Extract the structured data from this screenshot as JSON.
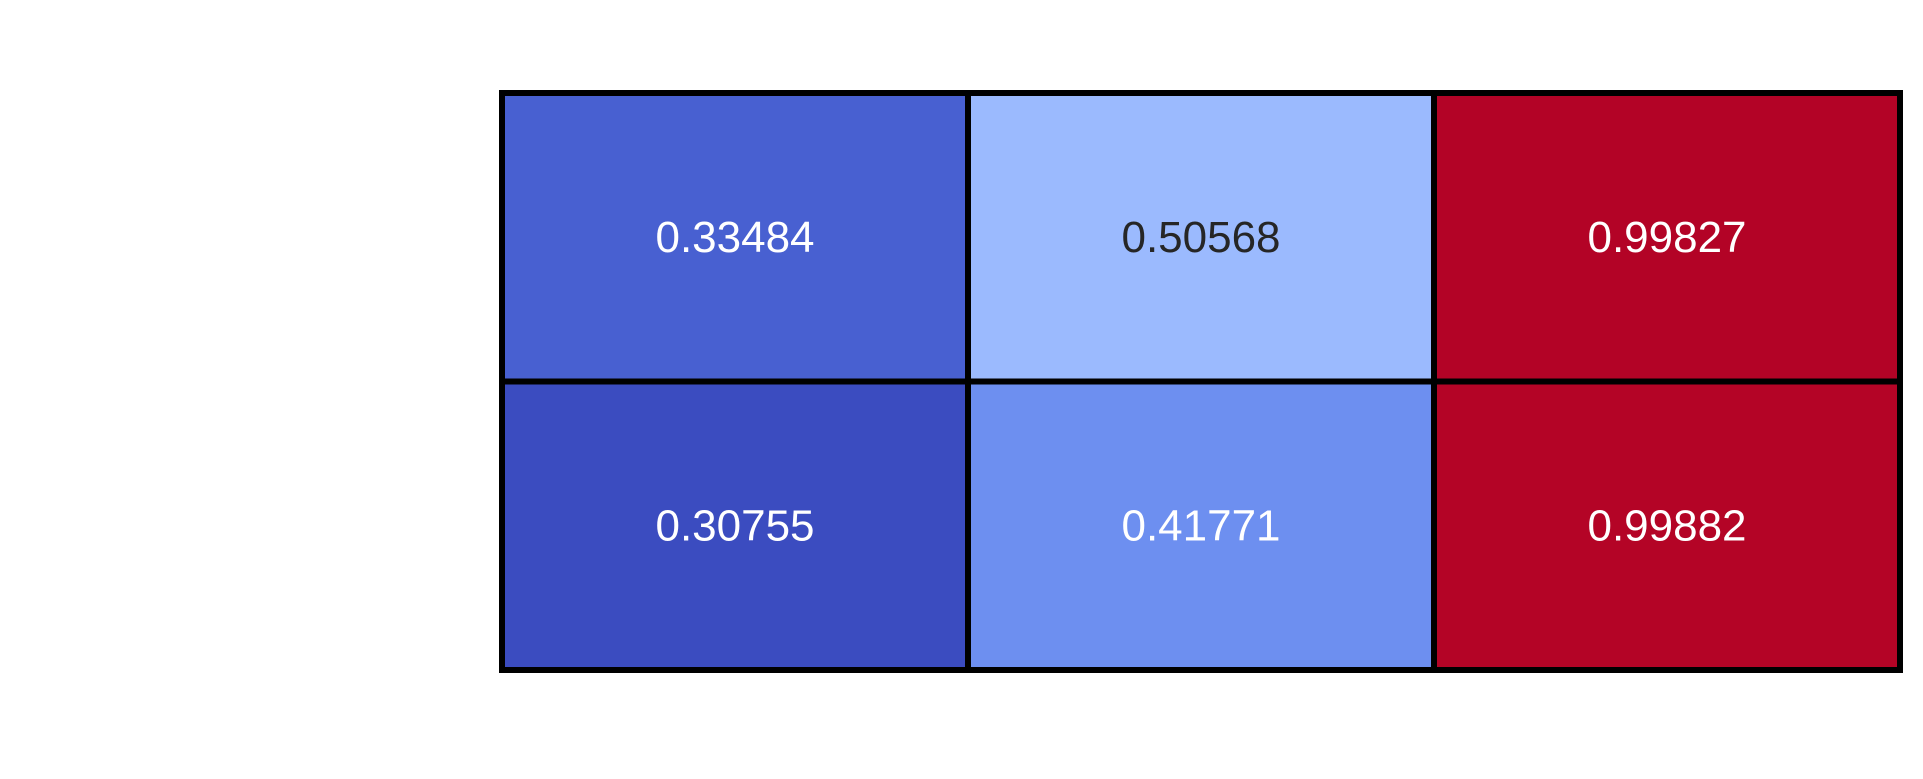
{
  "chart_data": {
    "type": "heatmap",
    "title": "",
    "xlabel": "",
    "ylabel": "",
    "rows": 2,
    "cols": 3,
    "values": [
      [
        0.33484,
        0.50568,
        0.99827
      ],
      [
        0.30755,
        0.41771,
        0.99882
      ]
    ],
    "labels": [
      [
        "0.33484",
        "0.50568",
        "0.99827"
      ],
      [
        "0.30755",
        "0.41771",
        "0.99882"
      ]
    ],
    "colormap": "coolwarm",
    "cell_colors": [
      [
        "#4860d1",
        "#9bbafe",
        "#b30326"
      ],
      [
        "#3b4cc0",
        "#6d8ff0",
        "#b40426"
      ]
    ],
    "text_colors": [
      [
        "#ffffff",
        "#262626",
        "#ffffff"
      ],
      [
        "#ffffff",
        "#ffffff",
        "#ffffff"
      ]
    ],
    "cell_border_color": "#000000",
    "colorbar": false,
    "grid": false
  }
}
